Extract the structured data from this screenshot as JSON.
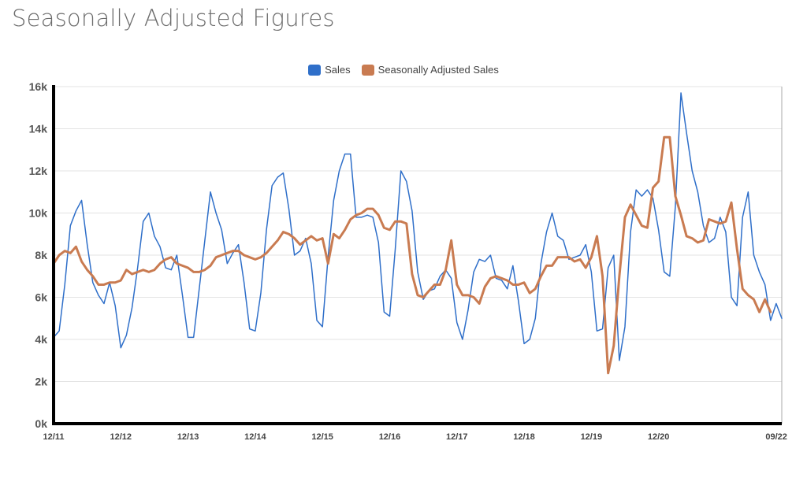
{
  "title": "Seasonally Adjusted Figures",
  "chart_data": {
    "type": "line",
    "legend_position": "top-center",
    "grid": true,
    "ylim": [
      0,
      16000
    ],
    "y_ticks": [
      0,
      2000,
      4000,
      6000,
      8000,
      10000,
      12000,
      14000,
      16000
    ],
    "y_tick_labels": [
      "0k",
      "2k",
      "4k",
      "6k",
      "8k",
      "10k",
      "12k",
      "14k",
      "16k"
    ],
    "x_tick_labels": [
      "12/11",
      "12/12",
      "12/13",
      "12/14",
      "12/15",
      "12/16",
      "12/17",
      "12/18",
      "12/19",
      "12/20",
      "09/22"
    ],
    "x_tick_index": [
      0,
      12,
      24,
      36,
      48,
      60,
      72,
      84,
      96,
      108,
      129
    ],
    "series": [
      {
        "name": "Sales",
        "color": "#2f6fc9",
        "values": [
          4100,
          4400,
          6600,
          9400,
          10100,
          10600,
          8500,
          6700,
          6100,
          5700,
          6700,
          5600,
          3600,
          4200,
          5500,
          7400,
          9600,
          10000,
          8900,
          8400,
          7400,
          7300,
          8000,
          6100,
          4100,
          4100,
          6400,
          8700,
          11000,
          10000,
          9200,
          7600,
          8100,
          8500,
          6700,
          4500,
          4400,
          6200,
          9200,
          11300,
          11700,
          11900,
          10200,
          8000,
          8200,
          8800,
          7600,
          4900,
          4600,
          7900,
          10600,
          12000,
          12800,
          12800,
          9800,
          9800,
          9900,
          9800,
          8600,
          5300,
          5100,
          8300,
          12000,
          11500,
          10100,
          7200,
          5900,
          6300,
          6400,
          7000,
          7300,
          6900,
          4800,
          4000,
          5400,
          7200,
          7800,
          7700,
          8000,
          6900,
          6800,
          6400,
          7500,
          5800,
          3800,
          4000,
          5000,
          7600,
          9100,
          10000,
          8900,
          8700,
          7800,
          7900,
          8000,
          8500,
          7200,
          4400,
          4500,
          7400,
          8000,
          3000,
          4600,
          9100,
          11100,
          10800,
          11100,
          10700,
          9200,
          7200,
          7000,
          10300,
          15700,
          13800,
          12000,
          11000,
          9400,
          8600,
          8800,
          9800,
          9100,
          6000,
          5600,
          9800,
          11000,
          8000,
          7200,
          6600,
          4900,
          5700,
          5000
        ]
      },
      {
        "name": "Seasonally Adjusted Sales",
        "color": "#c97b51",
        "values": [
          7600,
          8000,
          8200,
          8100,
          8400,
          7700,
          7300,
          7000,
          6600,
          6600,
          6700,
          6700,
          6800,
          7300,
          7100,
          7200,
          7300,
          7200,
          7300,
          7600,
          7800,
          7900,
          7600,
          7500,
          7400,
          7200,
          7200,
          7300,
          7500,
          7900,
          8000,
          8100,
          8200,
          8200,
          8000,
          7900,
          7800,
          7900,
          8100,
          8400,
          8700,
          9100,
          9000,
          8800,
          8500,
          8700,
          8900,
          8700,
          8800,
          7600,
          9000,
          8800,
          9200,
          9700,
          9900,
          10000,
          10200,
          10200,
          9900,
          9300,
          9200,
          9600,
          9600,
          9500,
          7100,
          6100,
          6000,
          6300,
          6600,
          6600,
          7300,
          8700,
          6600,
          6100,
          6100,
          6000,
          5700,
          6500,
          6900,
          7000,
          6900,
          6800,
          6600,
          6600,
          6700,
          6200,
          6400,
          7000,
          7500,
          7500,
          7900,
          7900,
          7900,
          7700,
          7800,
          7400,
          7900,
          8900,
          7000,
          2400,
          3700,
          7000,
          9800,
          10400,
          9900,
          9400,
          9300,
          11200,
          11500,
          13600,
          13600,
          10800,
          9900,
          8900,
          8800,
          8600,
          8700,
          9700,
          9600,
          9500,
          9600,
          10500,
          8300,
          6400,
          6100,
          5900,
          5300,
          5900,
          5300
        ]
      }
    ]
  }
}
